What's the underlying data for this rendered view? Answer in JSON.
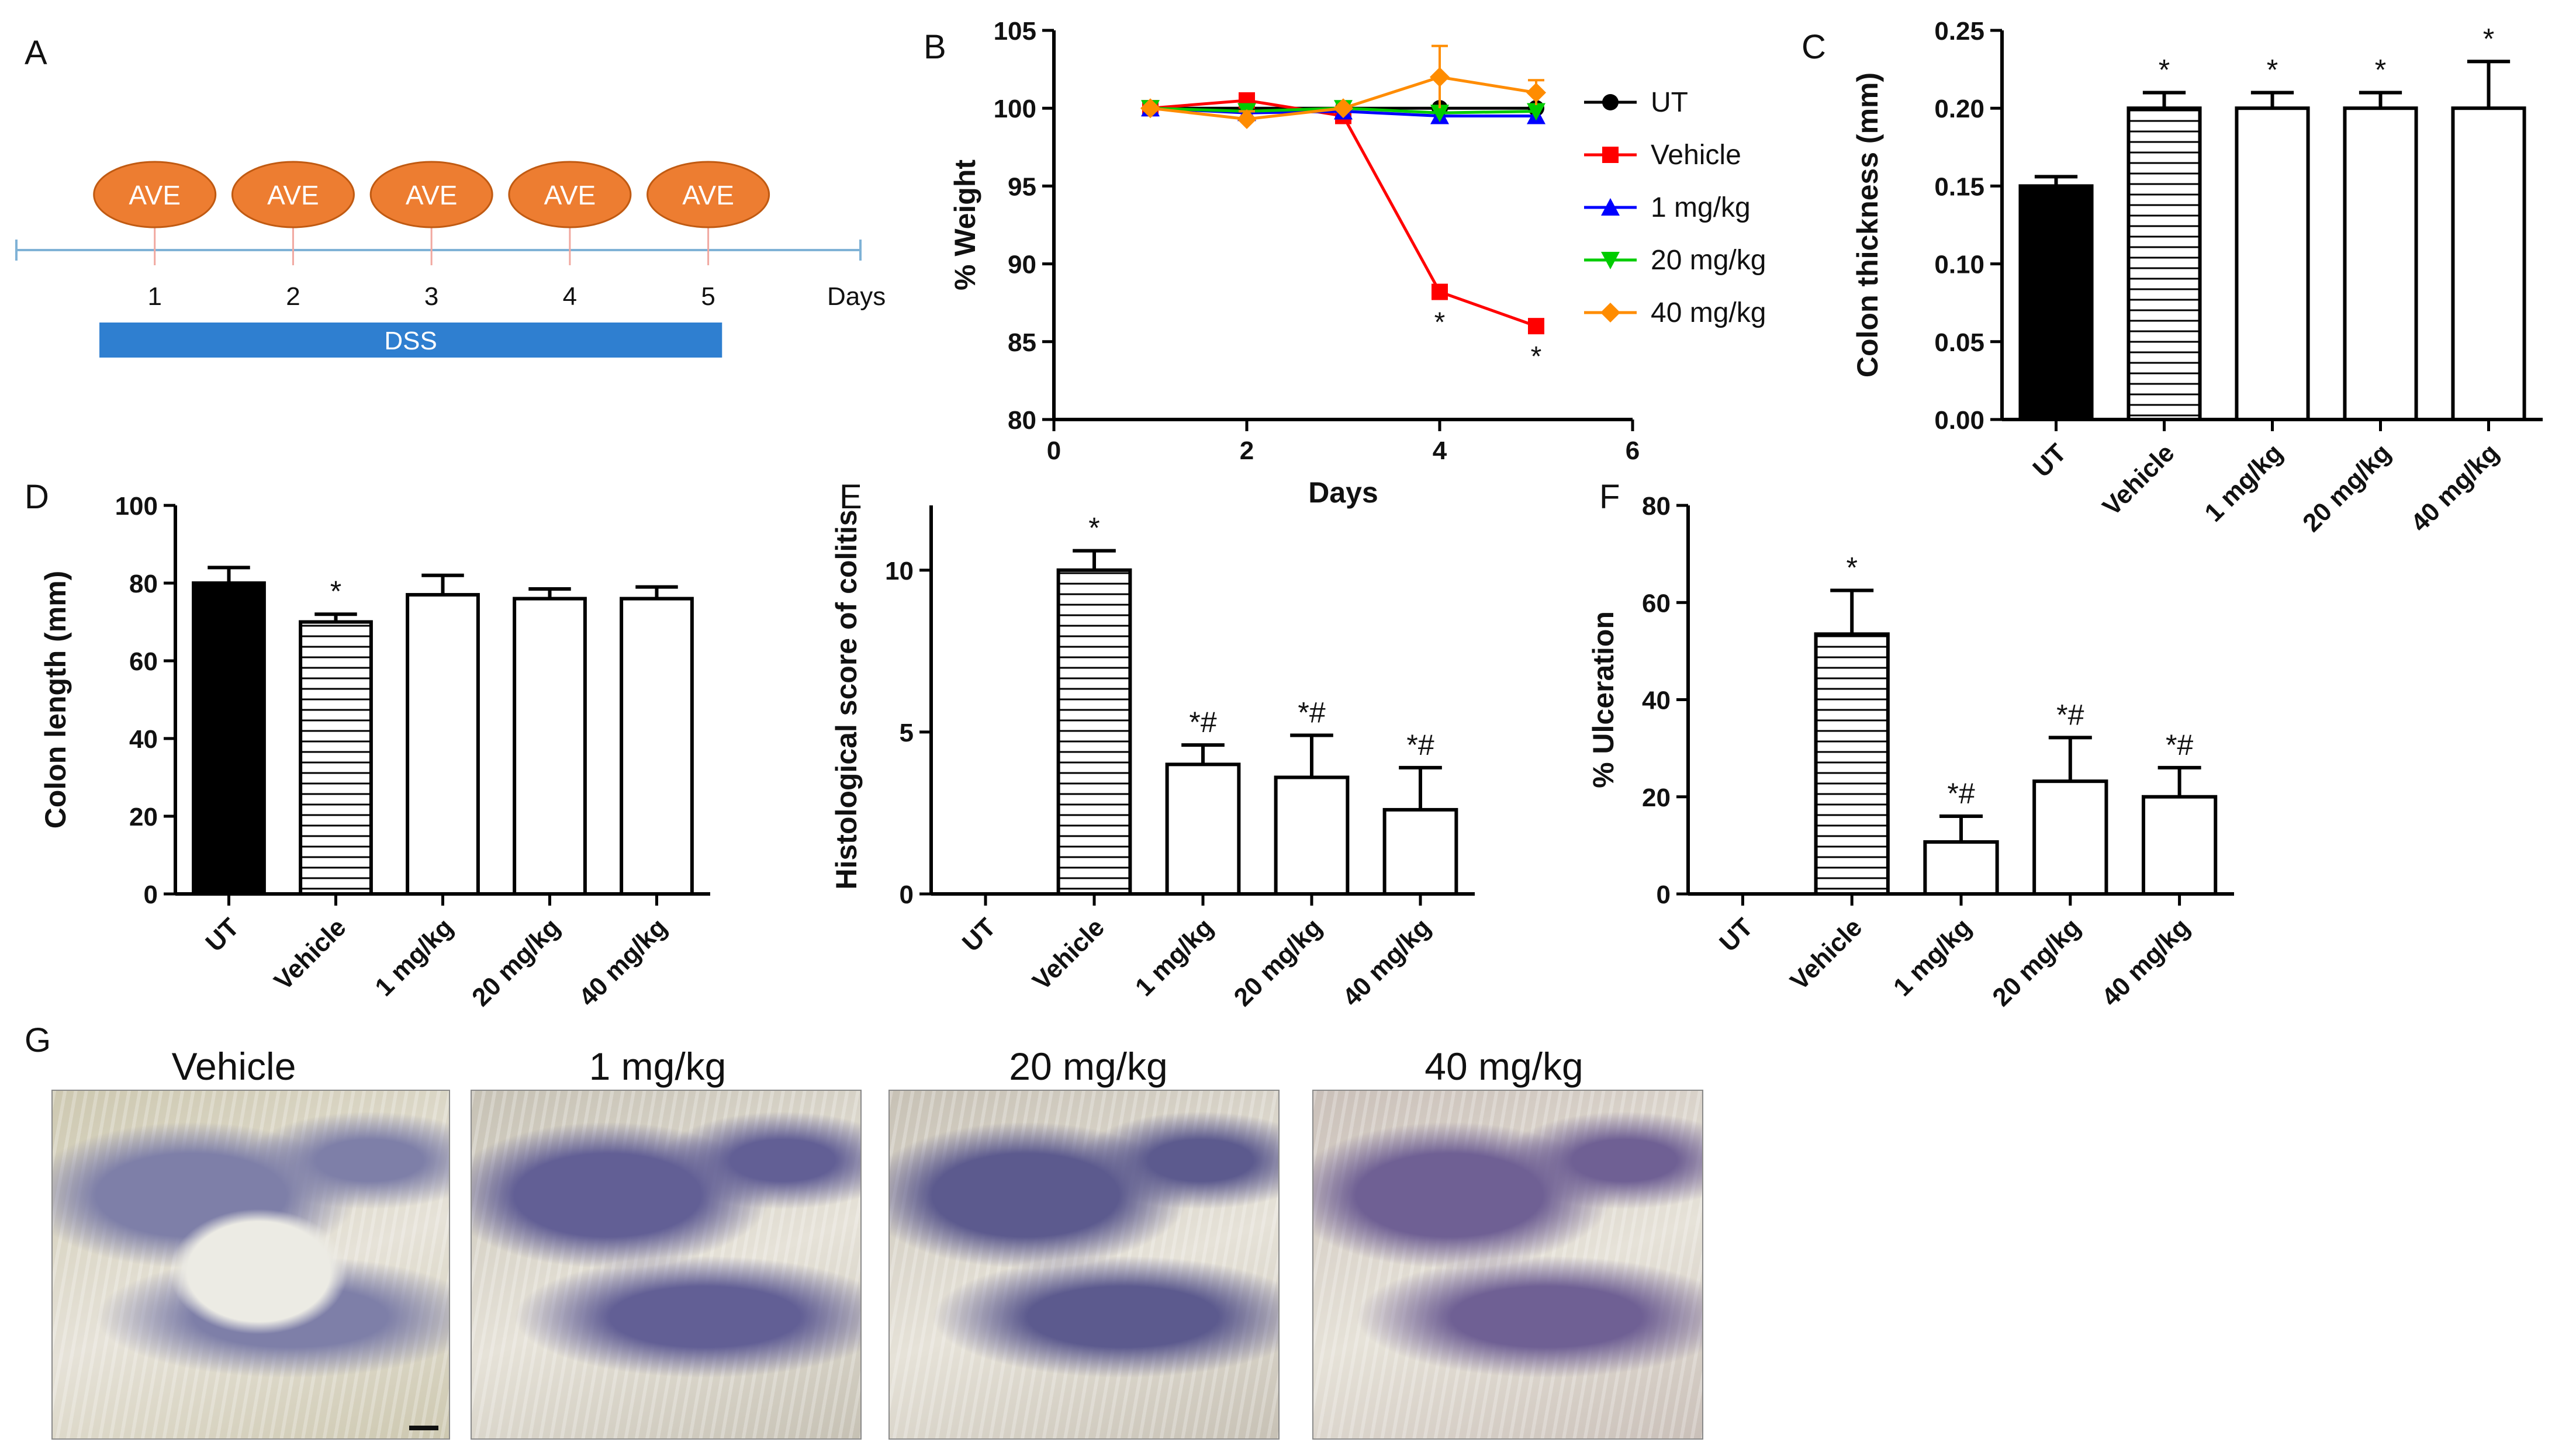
{
  "panel_labels": {
    "a": "A",
    "b": "B",
    "c": "C",
    "d": "D",
    "e": "E",
    "f": "F",
    "g": "G"
  },
  "timeline": {
    "tick_labels": [
      "1",
      "2",
      "3",
      "4",
      "5"
    ],
    "ticks": [
      1,
      2,
      3,
      4,
      5
    ],
    "days_label": "Days",
    "treatment_label": "AVE",
    "treatment_days": [
      1,
      2,
      3,
      4,
      5
    ],
    "bar_label": "DSS",
    "bar_span": [
      0.6,
      5.1
    ],
    "axis_range": [
      0,
      6.1
    ],
    "colors": {
      "ellipse": "#ed7d31",
      "ellipse_edge": "#c05a12",
      "line": "#7fb2d6",
      "tick": "#f1a8a0",
      "bar": "#2f7fd0"
    }
  },
  "chart_data": [
    {
      "id": "B",
      "type": "line",
      "title": "",
      "xlabel": "Days",
      "ylabel": "% Weight",
      "xlim": [
        0,
        6
      ],
      "ylim": [
        80,
        105
      ],
      "xticks": [
        0,
        2,
        4,
        6
      ],
      "yticks": [
        80,
        85,
        90,
        95,
        100,
        105
      ],
      "series": [
        {
          "name": "UT",
          "color": "#000000",
          "marker": "circle",
          "x": [
            1,
            2,
            3,
            4,
            5
          ],
          "y": [
            100,
            100,
            100,
            100,
            100
          ],
          "err": [
            0,
            0,
            0,
            0,
            0
          ]
        },
        {
          "name": "Vehicle",
          "color": "#ff0000",
          "marker": "square",
          "x": [
            1,
            2,
            3,
            4,
            5
          ],
          "y": [
            100,
            100.5,
            99.5,
            88.2,
            86
          ],
          "err": [
            0,
            0,
            0,
            0,
            0
          ]
        },
        {
          "name": "1 mg/kg",
          "color": "#0000ff",
          "marker": "triangle-up",
          "x": [
            1,
            2,
            3,
            4,
            5
          ],
          "y": [
            100,
            99.7,
            99.8,
            99.5,
            99.5
          ],
          "err": [
            0,
            0,
            0,
            0,
            0
          ]
        },
        {
          "name": "20 mg/kg",
          "color": "#00cc00",
          "marker": "triangle-down",
          "x": [
            1,
            2,
            3,
            4,
            5
          ],
          "y": [
            100,
            99.8,
            100,
            99.7,
            99.8
          ],
          "err": [
            0,
            0,
            0,
            0,
            0
          ]
        },
        {
          "name": "40 mg/kg",
          "color": "#ff8c00",
          "marker": "diamond",
          "x": [
            1,
            2,
            3,
            4,
            5
          ],
          "y": [
            100,
            99.3,
            100,
            102,
            101
          ],
          "err": [
            0,
            0.5,
            0,
            2,
            0.8
          ]
        }
      ],
      "annotations": [
        {
          "x": 4,
          "y": 88.2,
          "text": "*"
        },
        {
          "x": 5,
          "y": 86,
          "text": "*"
        }
      ],
      "legend": "right"
    },
    {
      "id": "C",
      "type": "bar",
      "title": "",
      "xlabel": "",
      "ylabel": "Colon thickness (mm)",
      "categories": [
        "UT",
        "Vehicle",
        "1 mg/kg",
        "20 mg/kg",
        "40 mg/kg"
      ],
      "values": [
        0.15,
        0.2,
        0.2,
        0.2,
        0.2
      ],
      "errors": [
        0.006,
        0.01,
        0.01,
        0.01,
        0.03
      ],
      "annotations": [
        "",
        "*",
        "*",
        "*",
        "*"
      ],
      "fills": [
        "solid",
        "hatched",
        "open",
        "open",
        "open"
      ],
      "ylim": [
        0,
        0.25
      ],
      "yticks": [
        0.0,
        0.05,
        0.1,
        0.15,
        0.2,
        0.25
      ],
      "ytick_labels": [
        "0.00",
        "0.05",
        "0.10",
        "0.15",
        "0.20",
        "0.25"
      ]
    },
    {
      "id": "D",
      "type": "bar",
      "title": "",
      "xlabel": "",
      "ylabel": "Colon length (mm)",
      "categories": [
        "UT",
        "Vehicle",
        "1 mg/kg",
        "20 mg/kg",
        "40 mg/kg"
      ],
      "values": [
        80,
        70,
        77,
        76,
        76
      ],
      "errors": [
        4,
        2,
        5,
        2.5,
        3
      ],
      "annotations": [
        "",
        "*",
        "",
        "",
        ""
      ],
      "fills": [
        "solid",
        "hatched",
        "open",
        "open",
        "open"
      ],
      "ylim": [
        0,
        100
      ],
      "yticks": [
        0,
        20,
        40,
        60,
        80,
        100
      ],
      "ytick_labels": [
        "0",
        "20",
        "40",
        "60",
        "80",
        "100"
      ]
    },
    {
      "id": "E",
      "type": "bar",
      "title": "",
      "xlabel": "",
      "ylabel": "Histological score of colitis",
      "categories": [
        "UT",
        "Vehicle",
        "1 mg/kg",
        "20 mg/kg",
        "40 mg/kg"
      ],
      "values": [
        0,
        10,
        4,
        3.6,
        2.6
      ],
      "errors": [
        0,
        0.6,
        0.6,
        1.3,
        1.3
      ],
      "annotations": [
        "",
        "*",
        "*#",
        "*#",
        "*#"
      ],
      "fills": [
        "solid",
        "hatched",
        "open",
        "open",
        "open"
      ],
      "ylim": [
        0,
        12
      ],
      "yticks": [
        0,
        5,
        10
      ],
      "ytick_labels": [
        "0",
        "5",
        "10"
      ]
    },
    {
      "id": "F",
      "type": "bar",
      "title": "",
      "xlabel": "",
      "ylabel": "% Ulceration",
      "categories": [
        "UT",
        "Vehicle",
        "1 mg/kg",
        "20 mg/kg",
        "40 mg/kg"
      ],
      "values": [
        0,
        53.5,
        10.7,
        23.2,
        20
      ],
      "errors": [
        0,
        9,
        5.3,
        9,
        6
      ],
      "annotations": [
        "",
        "*",
        "*#",
        "*#",
        "*#"
      ],
      "fills": [
        "solid",
        "hatched",
        "open",
        "open",
        "open"
      ],
      "ylim": [
        0,
        80
      ],
      "yticks": [
        0,
        20,
        40,
        60,
        80
      ],
      "ytick_labels": [
        "0",
        "20",
        "40",
        "60",
        "80"
      ]
    }
  ],
  "micrographs": [
    {
      "title": "Vehicle",
      "tissue": "#cdc8b0",
      "stain": "#7e7fa8"
    },
    {
      "title": "1 mg/kg",
      "tissue": "#c6c1b4",
      "stain": "#625f95"
    },
    {
      "title": "20 mg/kg",
      "tissue": "#c7c1b5",
      "stain": "#5c5a8e"
    },
    {
      "title": "40 mg/kg",
      "tissue": "#cac0b9",
      "stain": "#6f6094"
    }
  ]
}
